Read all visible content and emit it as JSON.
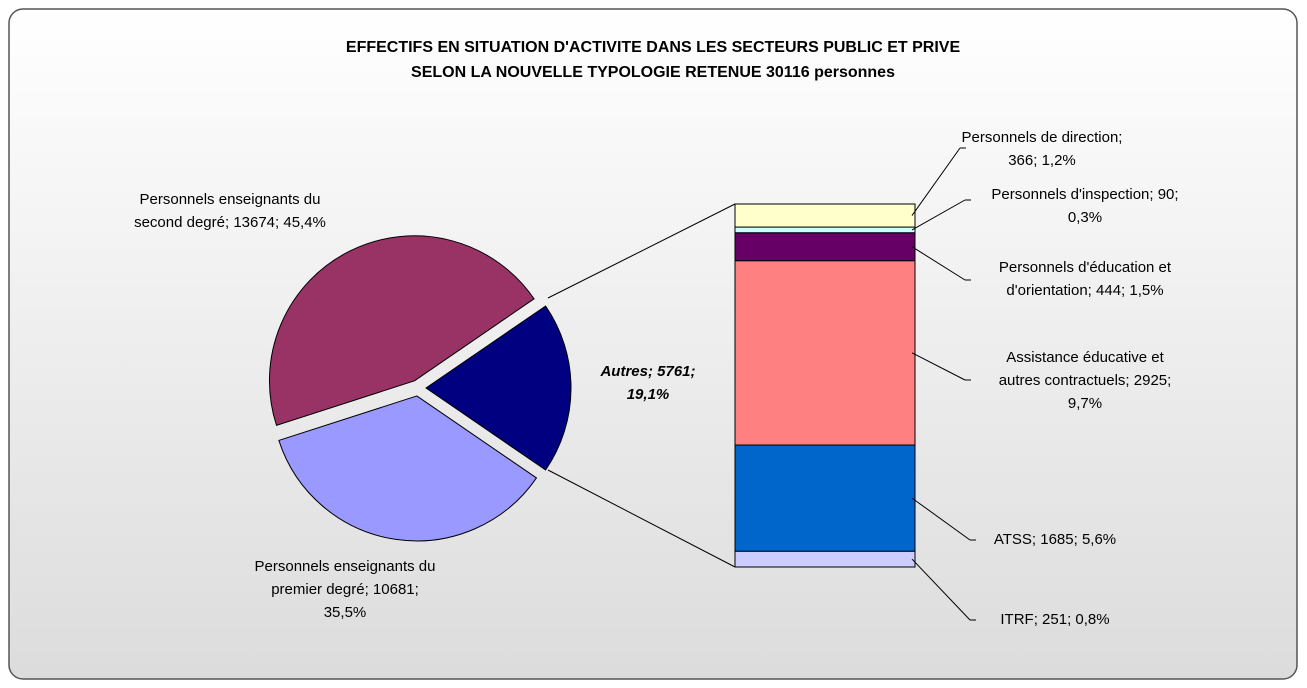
{
  "chart_data": [
    {
      "type": "pie",
      "title": [
        "EFFECTIFS EN SITUATION D'ACTIVITE DANS LES SECTEURS PUBLIC ET PRIVE",
        "SELON LA NOUVELLE TYPOLOGIE RETENUE 30116 personnes"
      ],
      "values": [
        13674,
        10681,
        5761
      ],
      "value_labels": [
        [
          "Personnels enseignants du",
          "second degré; 13674; 45,4%"
        ],
        [
          "Personnels enseignants du",
          "premier  degré; 10681;",
          "35,5%"
        ],
        [
          "Autres; 5761;",
          "19,1%"
        ]
      ],
      "colors": [
        "#993366",
        "#9999ff",
        "#000080"
      ]
    },
    {
      "type": "stacked-bar",
      "values": [
        251,
        1685,
        2925,
        444,
        90,
        366
      ],
      "value_labels": [
        [
          "ITRF; 251; 0,8%"
        ],
        [
          "ATSS; 1685; 5,6%"
        ],
        [
          "Assistance éducative et",
          "autres contractuels; 2925;",
          "9,7%"
        ],
        [
          "Personnels d'éducation et",
          "d'orientation; 444; 1,5%"
        ],
        [
          "Personnels d'inspection; 90;",
          "0,3%"
        ],
        [
          "Personnels de direction;",
          "366; 1,2%"
        ]
      ],
      "colors": [
        "#ccccff",
        "#0066cc",
        "#ff8080",
        "#660066",
        "#ccffff",
        "#ffffcc"
      ]
    }
  ]
}
